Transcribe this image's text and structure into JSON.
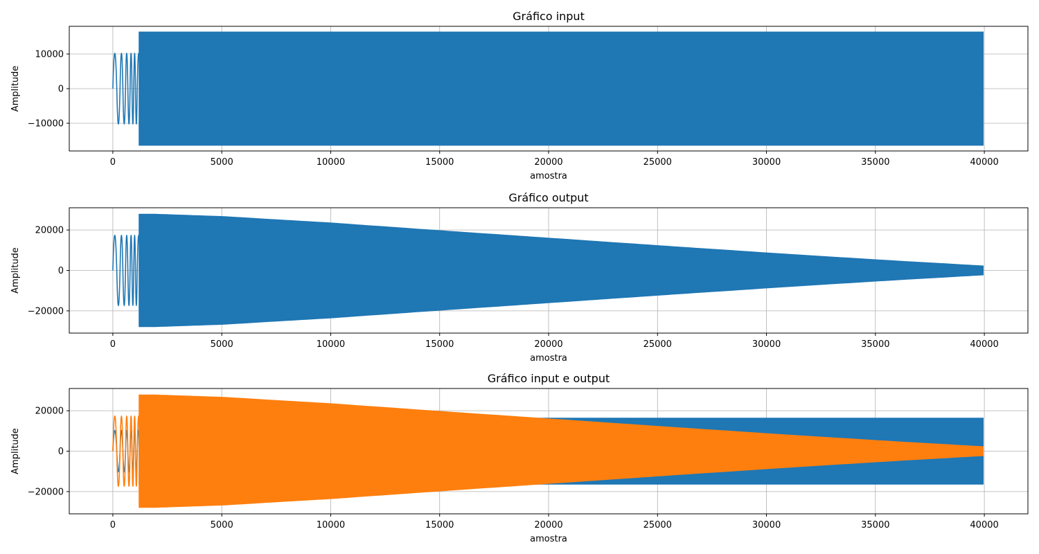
{
  "colors": {
    "input": "#1f77b4",
    "output": "#ff7f0e",
    "grid": "#b0b0b0",
    "frame": "#000000"
  },
  "chart_data": [
    {
      "type": "line",
      "title": "Gráfico input",
      "xlabel": "amostra",
      "ylabel": "Amplitude",
      "xlim": [
        -2000,
        42000
      ],
      "ylim": [
        -18000,
        18000
      ],
      "xticks": [
        0,
        5000,
        10000,
        15000,
        20000,
        25000,
        30000,
        35000,
        40000
      ],
      "xtick_labels": [
        "0",
        "5000",
        "10000",
        "15000",
        "20000",
        "25000",
        "30000",
        "35000",
        "40000"
      ],
      "yticks": [
        -10000,
        0,
        10000
      ],
      "ytick_labels": [
        "−10000",
        "0",
        "10000"
      ],
      "grid": true,
      "series": [
        {
          "color": "#1f77b4",
          "x": [
            0,
            40000
          ],
          "envelope_x": [
            0,
            5000,
            10000,
            15000,
            20000,
            25000,
            30000,
            35000,
            40000
          ],
          "envelope_amplitude": [
            16383,
            16383,
            16383,
            16383,
            16383,
            16383,
            16383,
            16383,
            16383
          ]
        }
      ]
    },
    {
      "type": "line",
      "title": "Gráfico output",
      "xlabel": "amostra",
      "ylabel": "Amplitude",
      "xlim": [
        -2000,
        42000
      ],
      "ylim": [
        -31000,
        31000
      ],
      "xticks": [
        0,
        5000,
        10000,
        15000,
        20000,
        25000,
        30000,
        35000,
        40000
      ],
      "xtick_labels": [
        "0",
        "5000",
        "10000",
        "15000",
        "20000",
        "25000",
        "30000",
        "35000",
        "40000"
      ],
      "yticks": [
        -20000,
        0,
        20000
      ],
      "ytick_labels": [
        "−20000",
        "0",
        "20000"
      ],
      "grid": true,
      "series": [
        {
          "color": "#1f77b4",
          "x": [
            0,
            40000
          ],
          "envelope_x": [
            0,
            2000,
            5000,
            10000,
            15000,
            20000,
            25000,
            30000,
            35000,
            40000
          ],
          "envelope_amplitude": [
            27900,
            27800,
            26700,
            23500,
            19700,
            16000,
            12300,
            8700,
            5300,
            2200
          ]
        }
      ]
    },
    {
      "type": "line",
      "title": "Gráfico input e output",
      "xlabel": "amostra",
      "ylabel": "Amplitude",
      "xlim": [
        -2000,
        42000
      ],
      "ylim": [
        -31000,
        31000
      ],
      "xticks": [
        0,
        5000,
        10000,
        15000,
        20000,
        25000,
        30000,
        35000,
        40000
      ],
      "xtick_labels": [
        "0",
        "5000",
        "10000",
        "15000",
        "20000",
        "25000",
        "30000",
        "35000",
        "40000"
      ],
      "yticks": [
        -20000,
        0,
        20000
      ],
      "ytick_labels": [
        "−20000",
        "0",
        "20000"
      ],
      "grid": true,
      "series": [
        {
          "color": "#1f77b4",
          "x": [
            0,
            40000
          ],
          "envelope_x": [
            0,
            5000,
            10000,
            15000,
            20000,
            25000,
            30000,
            35000,
            40000
          ],
          "envelope_amplitude": [
            16383,
            16383,
            16383,
            16383,
            16383,
            16383,
            16383,
            16383,
            16383
          ]
        },
        {
          "color": "#ff7f0e",
          "x": [
            0,
            40000
          ],
          "envelope_x": [
            0,
            2000,
            5000,
            10000,
            15000,
            20000,
            25000,
            30000,
            35000,
            40000
          ],
          "envelope_amplitude": [
            27900,
            27800,
            26700,
            23500,
            19700,
            16000,
            12300,
            8700,
            5300,
            2200
          ]
        }
      ]
    }
  ]
}
